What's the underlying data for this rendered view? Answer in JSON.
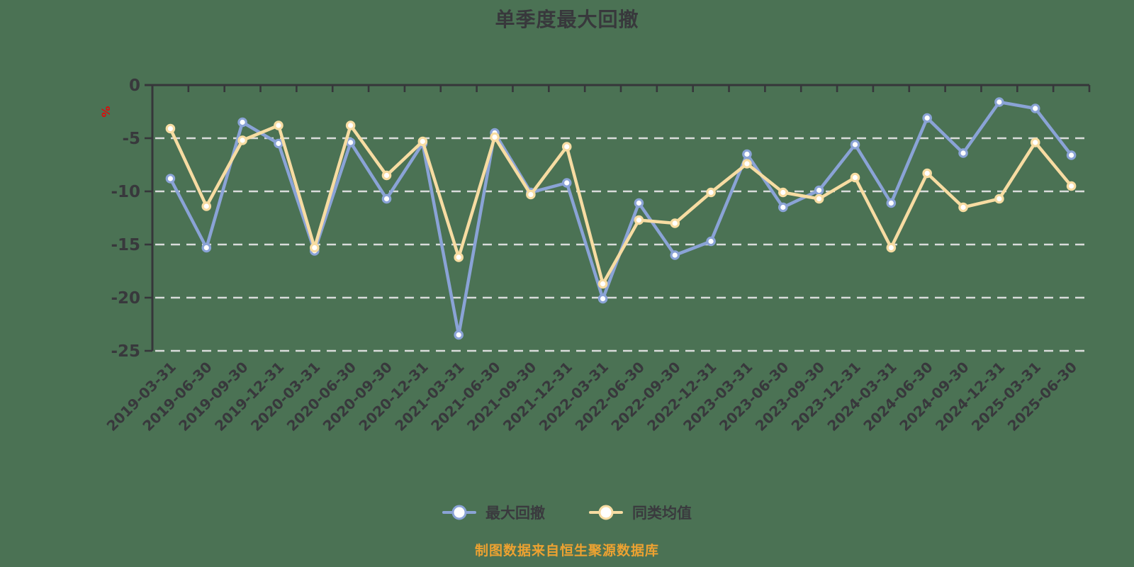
{
  "chart_data": {
    "type": "line",
    "title": "单季度最大回撤",
    "ylabel": "%",
    "source_note": "制图数据来自恒生聚源数据库",
    "ylim": [
      -25,
      0
    ],
    "yticks": [
      0,
      -5,
      -10,
      -15,
      -20,
      -25
    ],
    "ytick_labels": [
      "0",
      "-5",
      "-10",
      "-15",
      "-20",
      "-25"
    ],
    "grid": "horizontal-dashed",
    "legend_position": "bottom",
    "categories": [
      "2019-03-31",
      "2019-06-30",
      "2019-09-30",
      "2019-12-31",
      "2020-03-31",
      "2020-06-30",
      "2020-09-30",
      "2020-12-31",
      "2021-03-31",
      "2021-06-30",
      "2021-09-30",
      "2021-12-31",
      "2022-03-31",
      "2022-06-30",
      "2022-09-30",
      "2022-12-31",
      "2023-03-31",
      "2023-06-30",
      "2023-09-30",
      "2023-12-31",
      "2024-03-31",
      "2024-06-30",
      "2024-09-30",
      "2024-12-31",
      "2025-03-31",
      "2025-06-30"
    ],
    "series": [
      {
        "name": "最大回撤",
        "color": "#8AA3D6",
        "marker_fill": "#FFFFFF",
        "values": [
          -8.8,
          -15.3,
          -3.5,
          -5.5,
          -15.6,
          -5.4,
          -10.7,
          -5.5,
          -23.5,
          -4.5,
          -10.1,
          -9.2,
          -20.1,
          -11.1,
          -16.0,
          -14.7,
          -6.5,
          -11.5,
          -9.9,
          -5.6,
          -11.1,
          -3.1,
          -6.4,
          -1.6,
          -2.2,
          -6.6
        ]
      },
      {
        "name": "同类均值",
        "color": "#F7DCA2",
        "marker_fill": "#FFFFFF",
        "values": [
          -4.1,
          -11.4,
          -5.2,
          -3.8,
          -15.3,
          -3.8,
          -8.5,
          -5.3,
          -16.2,
          -4.9,
          -10.3,
          -5.8,
          -18.7,
          -12.7,
          -13.0,
          -10.1,
          -7.4,
          -10.1,
          -10.7,
          -8.7,
          -15.3,
          -8.3,
          -11.5,
          -10.7,
          -5.4,
          -9.5
        ]
      }
    ],
    "colors": {
      "background": "#4B7254",
      "axis": "#36363A",
      "gridline": "#E6E6E6",
      "tick_text": "#38383C",
      "unit_text": "#DE0B0B",
      "source_text": "#EDA231"
    }
  }
}
